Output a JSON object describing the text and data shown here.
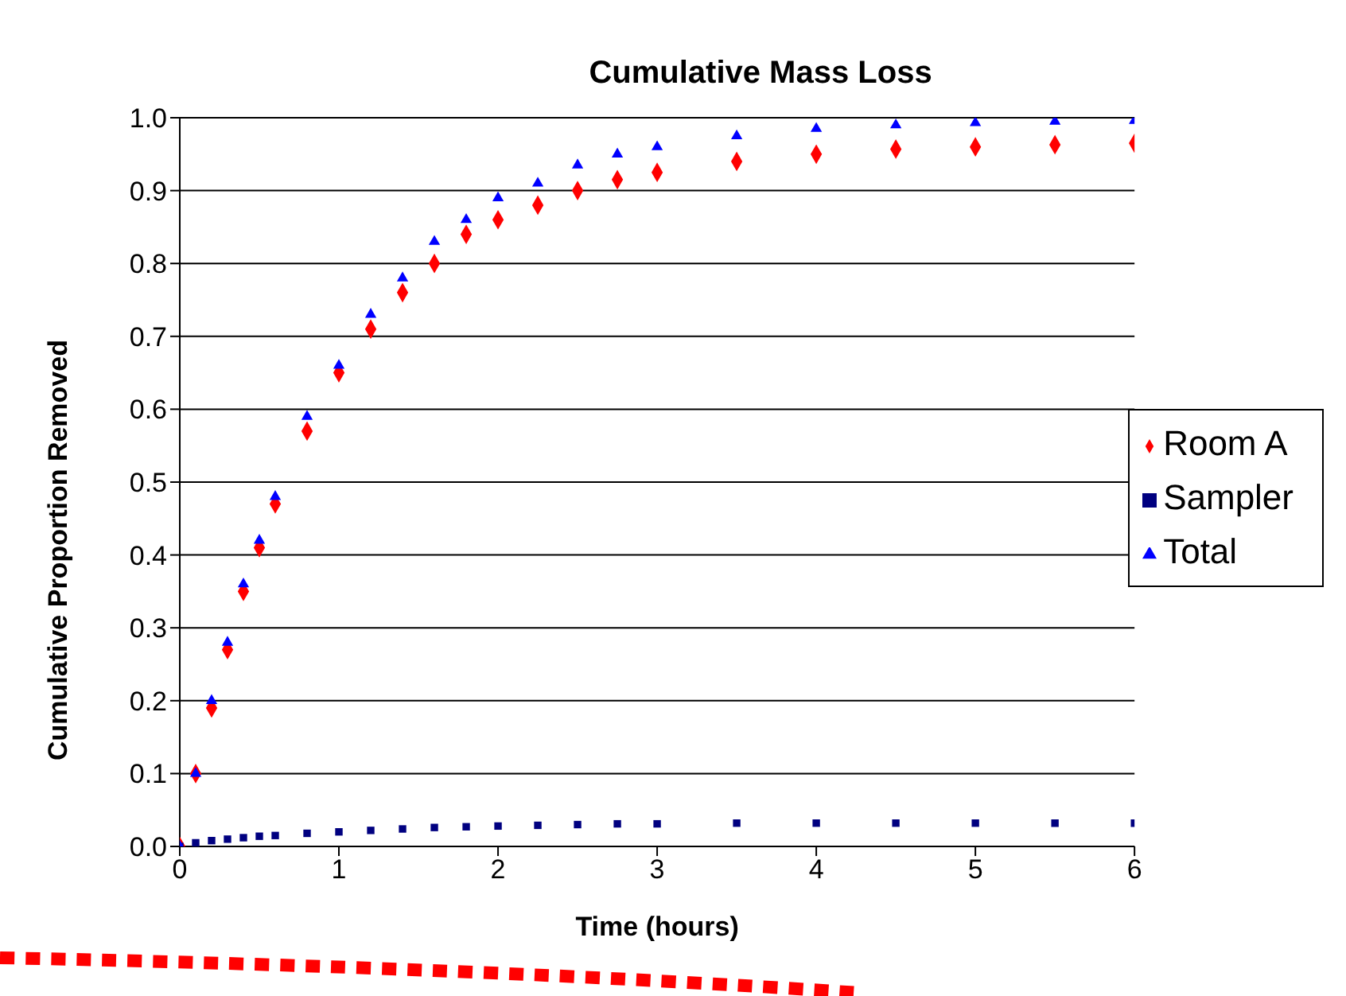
{
  "chart_data": {
    "type": "scatter",
    "title": "Cumulative Mass Loss",
    "xlabel": "Time (hours)",
    "ylabel": "Cumulative Proportion Removed",
    "x": [
      0,
      0.1,
      0.2,
      0.3,
      0.4,
      0.5,
      0.6,
      0.8,
      1.0,
      1.2,
      1.4,
      1.6,
      1.8,
      2.0,
      2.25,
      2.5,
      2.75,
      3.0,
      3.5,
      4.0,
      4.5,
      5.0,
      5.5,
      6.0
    ],
    "series": [
      {
        "name": "Room A",
        "color": "#ff0000",
        "marker": "diamond",
        "values": [
          0,
          0.1,
          0.19,
          0.27,
          0.35,
          0.41,
          0.47,
          0.57,
          0.65,
          0.71,
          0.76,
          0.8,
          0.84,
          0.86,
          0.88,
          0.9,
          0.915,
          0.925,
          0.94,
          0.95,
          0.957,
          0.96,
          0.963,
          0.965
        ]
      },
      {
        "name": "Sampler",
        "color": "#000080",
        "marker": "square",
        "values": [
          0,
          0.005,
          0.008,
          0.01,
          0.012,
          0.014,
          0.015,
          0.018,
          0.02,
          0.022,
          0.024,
          0.026,
          0.027,
          0.028,
          0.029,
          0.03,
          0.031,
          0.031,
          0.032,
          0.032,
          0.032,
          0.032,
          0.032,
          0.032
        ]
      },
      {
        "name": "Total",
        "color": "#0000ff",
        "marker": "triangle",
        "values": [
          0,
          0.1,
          0.2,
          0.28,
          0.36,
          0.42,
          0.48,
          0.59,
          0.66,
          0.73,
          0.78,
          0.83,
          0.86,
          0.89,
          0.91,
          0.935,
          0.95,
          0.96,
          0.975,
          0.985,
          0.99,
          0.993,
          0.995,
          0.996
        ]
      }
    ],
    "xlim": [
      0,
      6
    ],
    "xticks": [
      0,
      1,
      2,
      3,
      4,
      5,
      6
    ],
    "ylim": [
      0,
      1
    ],
    "yticks": [
      {
        "value": 0,
        "label": "0.0"
      },
      {
        "value": 0.1,
        "label": "0.1"
      },
      {
        "value": 0.2,
        "label": "0.2"
      },
      {
        "value": 0.3,
        "label": "0.3"
      },
      {
        "value": 0.4,
        "label": "0.4"
      },
      {
        "value": 0.5,
        "label": "0.5"
      },
      {
        "value": 0.6,
        "label": "0.6"
      },
      {
        "value": 0.7,
        "label": "0.7"
      },
      {
        "value": 0.8,
        "label": "0.8"
      },
      {
        "value": 0.9,
        "label": "0.9"
      },
      {
        "value": 1,
        "label": "1.0"
      }
    ],
    "grid": "y",
    "legend": "right"
  }
}
